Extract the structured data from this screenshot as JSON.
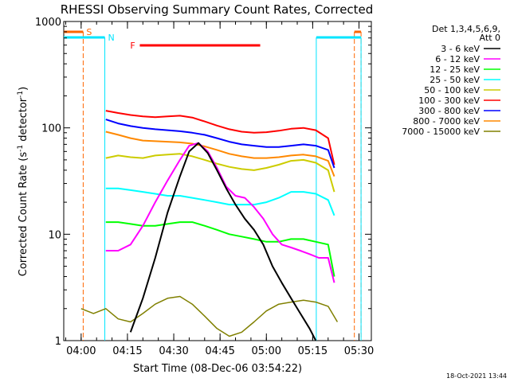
{
  "chart_data": {
    "type": "line",
    "title": "RHESSI Observing Summary Count Rates, Corrected",
    "xlabel": "Start Time (08-Dec-06 03:54:22)",
    "ylabel": "Corrected Count Rate (s⁻¹ detector⁻¹)",
    "ylabel_parts": [
      "Corrected Count Rate (s",
      "-1",
      " detector",
      "-1",
      ")"
    ],
    "yscale": "log",
    "ylim": [
      1,
      1000
    ],
    "xlim": [
      "03:54:22",
      "05:34:00"
    ],
    "x_ticks": [
      "04:00",
      "04:15",
      "04:30",
      "04:45",
      "05:00",
      "05:15",
      "05:30"
    ],
    "y_ticks": [
      "1",
      "10",
      "100",
      "1000"
    ],
    "legend_header": [
      "Det 1,3,4,5,6,9,",
      "Att 0"
    ],
    "legend_position": "right",
    "timestamp": "18-Oct-2021 13:44",
    "flags": {
      "S": {
        "label": "S",
        "color": "#ff6600",
        "intervals": [
          [
            "03:54:22",
            "04:00:40"
          ],
          [
            "05:28:30",
            "05:30:40"
          ]
        ]
      },
      "N": {
        "label": "N",
        "color": "#00e5ff",
        "intervals": [
          [
            "03:54:22",
            "04:07:40"
          ],
          [
            "05:16:10",
            "05:30:40"
          ]
        ]
      },
      "F": {
        "label": "F",
        "color": "#ff0000",
        "intervals": [
          [
            "04:19:00",
            "04:58:00"
          ]
        ]
      }
    },
    "series": [
      {
        "name": "3 - 6 keV",
        "color": "#000000",
        "x": [
          "04:16",
          "04:20",
          "04:24",
          "04:28",
          "04:32",
          "04:35",
          "04:38",
          "04:41",
          "04:44",
          "04:47",
          "04:50",
          "04:53",
          "04:56",
          "04:59",
          "05:02",
          "05:05",
          "05:08",
          "05:11",
          "05:14",
          "05:16"
        ],
        "y": [
          1.2,
          2.5,
          6,
          16,
          35,
          60,
          72,
          58,
          40,
          27,
          19,
          14,
          11,
          8,
          5,
          3.5,
          2.5,
          1.8,
          1.3,
          1.0
        ]
      },
      {
        "name": "6 - 12 keV",
        "color": "#ff00ff",
        "x": [
          "04:08",
          "04:12",
          "04:16",
          "04:20",
          "04:24",
          "04:28",
          "04:32",
          "04:35",
          "04:38",
          "04:41",
          "04:44",
          "04:47",
          "04:50",
          "04:53",
          "04:56",
          "04:59",
          "05:02",
          "05:05",
          "05:08",
          "05:11",
          "05:14",
          "05:17",
          "05:20",
          "05:22"
        ],
        "y": [
          7,
          7,
          8,
          12,
          20,
          32,
          50,
          68,
          72,
          60,
          42,
          28,
          23,
          22,
          18,
          14,
          10,
          8,
          7.5,
          7,
          6.5,
          6,
          6,
          3.5
        ]
      },
      {
        "name": "12 - 25 keV",
        "color": "#00ff00",
        "x": [
          "04:08",
          "04:12",
          "04:16",
          "04:20",
          "04:24",
          "04:28",
          "04:32",
          "04:36",
          "04:40",
          "04:44",
          "04:48",
          "04:52",
          "04:56",
          "05:00",
          "05:04",
          "05:08",
          "05:12",
          "05:16",
          "05:20",
          "05:22"
        ],
        "y": [
          13,
          13,
          12.5,
          12,
          12,
          12.5,
          13,
          13,
          12,
          11,
          10,
          9.5,
          9,
          8.5,
          8.5,
          9,
          9,
          8.5,
          8,
          4
        ]
      },
      {
        "name": "25 - 50 keV",
        "color": "#00ffff",
        "x": [
          "04:08",
          "04:12",
          "04:16",
          "04:20",
          "04:24",
          "04:28",
          "04:32",
          "04:36",
          "04:40",
          "04:44",
          "04:48",
          "04:52",
          "04:56",
          "05:00",
          "05:04",
          "05:08",
          "05:12",
          "05:16",
          "05:20",
          "05:22"
        ],
        "y": [
          27,
          27,
          26,
          25,
          24,
          23,
          23,
          22,
          21,
          20,
          19,
          19,
          19,
          20,
          22,
          25,
          25,
          24,
          21,
          15
        ]
      },
      {
        "name": "50 - 100 keV",
        "color": "#cccc00",
        "x": [
          "04:08",
          "04:12",
          "04:16",
          "04:20",
          "04:24",
          "04:28",
          "04:32",
          "04:36",
          "04:40",
          "04:44",
          "04:48",
          "04:52",
          "04:56",
          "05:00",
          "05:04",
          "05:08",
          "05:12",
          "05:16",
          "05:20",
          "05:22"
        ],
        "y": [
          52,
          55,
          53,
          52,
          55,
          56,
          57,
          54,
          50,
          46,
          43,
          41,
          40,
          42,
          45,
          49,
          50,
          47,
          40,
          25
        ]
      },
      {
        "name": "100 - 300 keV",
        "color": "#ff0000",
        "x": [
          "04:08",
          "04:12",
          "04:16",
          "04:20",
          "04:24",
          "04:28",
          "04:32",
          "04:36",
          "04:40",
          "04:44",
          "04:48",
          "04:52",
          "04:56",
          "05:00",
          "05:04",
          "05:08",
          "05:12",
          "05:16",
          "05:20",
          "05:22"
        ],
        "y": [
          145,
          138,
          132,
          128,
          126,
          128,
          130,
          125,
          115,
          105,
          97,
          92,
          90,
          91,
          94,
          98,
          100,
          95,
          80,
          45
        ]
      },
      {
        "name": "300 - 800 keV",
        "color": "#0000ff",
        "x": [
          "04:08",
          "04:12",
          "04:16",
          "04:20",
          "04:24",
          "04:28",
          "04:32",
          "04:36",
          "04:40",
          "04:44",
          "04:48",
          "04:52",
          "04:56",
          "05:00",
          "05:04",
          "05:08",
          "05:12",
          "05:16",
          "05:20",
          "05:22"
        ],
        "y": [
          120,
          110,
          104,
          100,
          97,
          95,
          93,
          90,
          86,
          80,
          74,
          70,
          68,
          66,
          66,
          68,
          70,
          68,
          62,
          42
        ]
      },
      {
        "name": "800 - 7000 keV",
        "color": "#ff8800",
        "x": [
          "04:08",
          "04:12",
          "04:16",
          "04:20",
          "04:24",
          "04:28",
          "04:32",
          "04:36",
          "04:40",
          "04:44",
          "04:48",
          "04:52",
          "04:56",
          "05:00",
          "05:04",
          "05:08",
          "05:12",
          "05:16",
          "05:20",
          "05:22"
        ],
        "y": [
          92,
          86,
          80,
          76,
          75,
          74,
          73,
          71,
          67,
          62,
          57,
          54,
          52,
          52,
          53,
          55,
          56,
          54,
          49,
          35
        ]
      },
      {
        "name": "7000 - 15000 keV",
        "color": "#808000",
        "x": [
          "04:00",
          "04:04",
          "04:08",
          "04:12",
          "04:16",
          "04:20",
          "04:24",
          "04:28",
          "04:32",
          "04:36",
          "04:40",
          "04:44",
          "04:48",
          "04:52",
          "04:56",
          "05:00",
          "05:04",
          "05:08",
          "05:12",
          "05:16",
          "05:20",
          "05:23"
        ],
        "y": [
          2,
          1.8,
          2,
          1.6,
          1.5,
          1.8,
          2.2,
          2.5,
          2.6,
          2.2,
          1.7,
          1.3,
          1.1,
          1.2,
          1.5,
          1.9,
          2.2,
          2.3,
          2.4,
          2.3,
          2.1,
          1.5
        ]
      }
    ]
  }
}
